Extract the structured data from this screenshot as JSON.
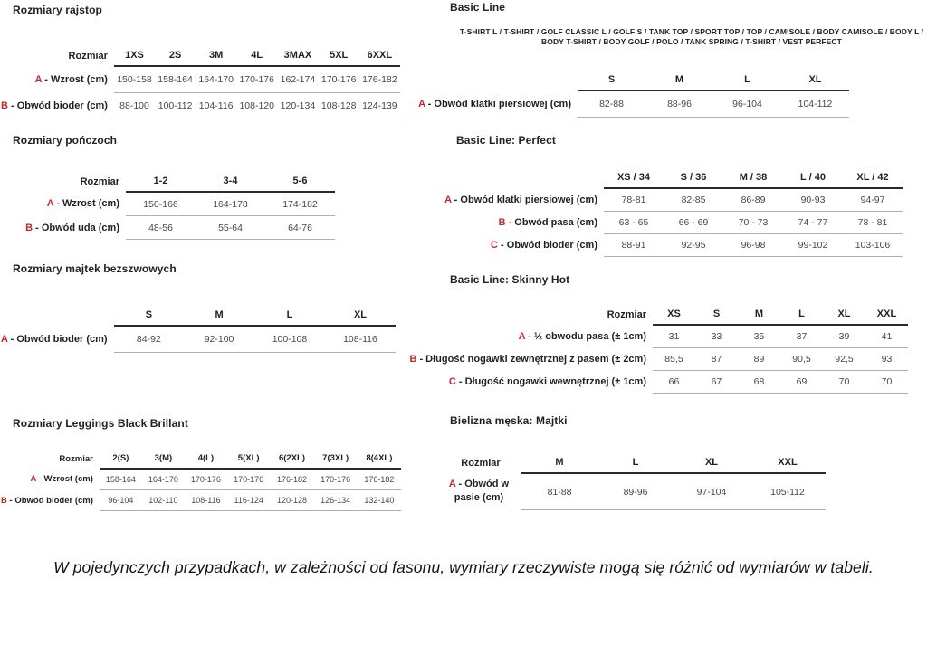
{
  "page": {
    "footnote": "W pojedynczych przypadkach, w zależności od fasonu, wymiary rzeczywiste mogą się różnić od wymiarów w tabeli."
  },
  "sections": {
    "rajstop": {
      "title": "Rozmiary rajstop",
      "table": {
        "corner": "Rozmiar",
        "columns": [
          "1XS",
          "2S",
          "3M",
          "4L",
          "3MAX",
          "5XL",
          "6XXL"
        ],
        "rows": [
          {
            "prefix": "A",
            "label": "- Wzrost (cm)",
            "values": [
              "150-158",
              "158-164",
              "164-170",
              "170-176",
              "162-174",
              "170-176",
              "176-182"
            ]
          },
          {
            "prefix": "B",
            "label": "- Obwód bioder (cm)",
            "values": [
              "88-100",
              "100-112",
              "104-116",
              "108-120",
              "120-134",
              "108-128",
              "124-139"
            ]
          }
        ]
      }
    },
    "ponczoch": {
      "title": "Rozmiary pończoch",
      "table": {
        "corner": "Rozmiar",
        "columns": [
          "1-2",
          "3-4",
          "5-6"
        ],
        "rows": [
          {
            "prefix": "A",
            "label": "- Wzrost (cm)",
            "values": [
              "150-166",
              "164-178",
              "174-182"
            ]
          },
          {
            "prefix": "B",
            "label": "- Obwód uda (cm)",
            "values": [
              "48-56",
              "55-64",
              "64-76"
            ]
          }
        ]
      }
    },
    "majtek": {
      "title": "Rozmiary majtek bezszwowych",
      "table": {
        "corner": "",
        "columns": [
          "S",
          "M",
          "L",
          "XL"
        ],
        "rows": [
          {
            "prefix": "A",
            "label": "- Obwód bioder (cm)",
            "values": [
              "84-92",
              "92-100",
              "100-108",
              "108-116"
            ]
          }
        ]
      }
    },
    "leggings": {
      "title": "Rozmiary Leggings Black Brillant",
      "table": {
        "corner": "Rozmiar",
        "columns": [
          "2(S)",
          "3(M)",
          "4(L)",
          "5(XL)",
          "6(2XL)",
          "7(3XL)",
          "8(4XL)"
        ],
        "rows": [
          {
            "prefix": "A",
            "label": "- Wzrost (cm)",
            "values": [
              "158-164",
              "164-170",
              "170-176",
              "170-176",
              "176-182",
              "170-176",
              "176-182"
            ]
          },
          {
            "prefix": "B",
            "label": "- Obwód bioder (cm)",
            "values": [
              "96-104",
              "102-110",
              "108-116",
              "116-124",
              "120-128",
              "126-134",
              "132-140"
            ]
          }
        ]
      }
    },
    "basic_line": {
      "title": "Basic Line",
      "subtitle": "T-SHIRT L / T-SHIRT / GOLF CLASSIC L / GOLF S / TANK TOP / SPORT TOP / TOP / CAMISOLE / BODY CAMISOLE / BODY L / BODY T-SHIRT / BODY GOLF / POLO / TANK SPRING / T-SHIRT / VEST PERFECT",
      "table": {
        "corner": "",
        "columns": [
          "S",
          "M",
          "L",
          "XL"
        ],
        "rows": [
          {
            "prefix": "A",
            "label": "- Obwód klatki piersiowej (cm)",
            "values": [
              "82-88",
              "88-96",
              "96-104",
              "104-112"
            ]
          }
        ]
      }
    },
    "perfect": {
      "title": "Basic Line: Perfect",
      "table": {
        "corner": "",
        "columns": [
          "XS / 34",
          "S / 36",
          "M / 38",
          "L / 40",
          "XL / 42"
        ],
        "rows": [
          {
            "prefix": "A",
            "label": "- Obwód klatki piersiowej (cm)",
            "values": [
              "78-81",
              "82-85",
              "86-89",
              "90-93",
              "94-97"
            ]
          },
          {
            "prefix": "B",
            "label": "- Obwód pasa (cm)",
            "values": [
              "63 - 65",
              "66 - 69",
              "70 - 73",
              "74 - 77",
              "78 - 81"
            ]
          },
          {
            "prefix": "C",
            "label": "- Obwód bioder (cm)",
            "values": [
              "88-91",
              "92-95",
              "96-98",
              "99-102",
              "103-106"
            ]
          }
        ]
      }
    },
    "skinny": {
      "title": "Basic Line: Skinny Hot",
      "table": {
        "corner": "Rozmiar",
        "columns": [
          "XS",
          "S",
          "M",
          "L",
          "XL",
          "XXL"
        ],
        "rows": [
          {
            "prefix": "A",
            "label": "- ½ obwodu pasa (± 1cm)",
            "values": [
              "31",
              "33",
              "35",
              "37",
              "39",
              "41"
            ]
          },
          {
            "prefix": "B",
            "label": "- Długość nogawki zewnętrznej z pasem (± 2cm)",
            "values": [
              "85,5",
              "87",
              "89",
              "90,5",
              "92,5",
              "93"
            ]
          },
          {
            "prefix": "C",
            "label": "- Długość nogawki wewnętrznej (± 1cm)",
            "values": [
              "66",
              "67",
              "68",
              "69",
              "70",
              "70"
            ]
          }
        ]
      }
    },
    "majtki": {
      "title": "Bielizna męska: Majtki",
      "table": {
        "corner": "Rozmiar",
        "columns": [
          "M",
          "L",
          "XL",
          "XXL"
        ],
        "rows": [
          {
            "prefix": "A",
            "label": "- Obwód w pasie (cm)",
            "values": [
              "81-88",
              "89-96",
              "97-104",
              "105-112"
            ]
          }
        ]
      }
    }
  },
  "colors": {
    "prefix_red": "#c1272d",
    "heading_dark": "#231f20",
    "value_gray": "#47474a",
    "thin_rule": "#acaeb0",
    "thick_rule": "#2b2a2b"
  }
}
